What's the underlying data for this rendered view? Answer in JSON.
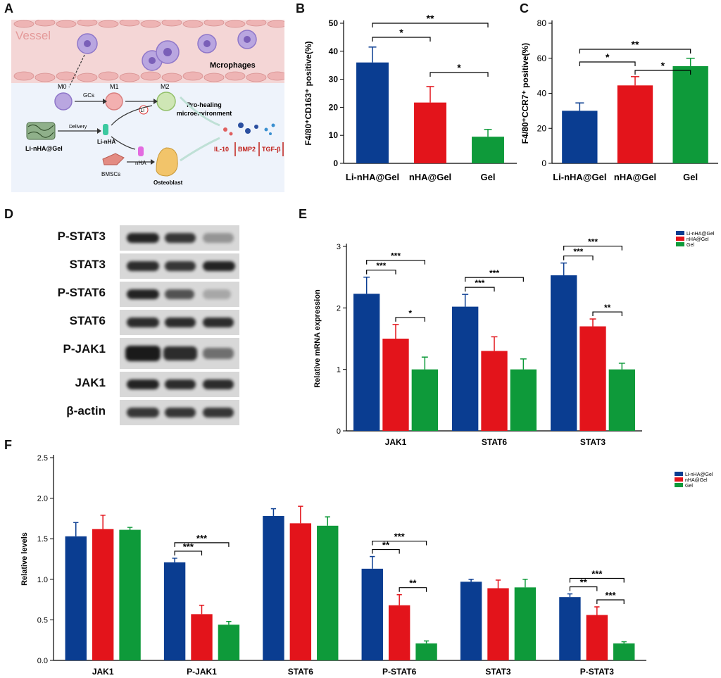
{
  "panel_letters": [
    "A",
    "B",
    "C",
    "D",
    "E",
    "F"
  ],
  "schematic": {
    "vessel_label": "Vessel",
    "macrophage_label": "Mcrophages",
    "m0": "M0",
    "m1": "M1",
    "m2": "M2",
    "gcs": "GCs",
    "li_ion": "Li",
    "delivery": "Delivery",
    "li_nha_gel": "Li-nHA@Gel",
    "li_nha": "Li-nHA",
    "nha": "nHA",
    "bmscs": "BMSCs",
    "osteoblast": "Osteoblast",
    "pro_healing": "Pro-healing\nmicroenvironment",
    "cytokines": [
      "IL-10",
      "BMP2",
      "TGF-β"
    ],
    "colors": {
      "vessel": "#f4d6d6",
      "cell": "#b9a6e0",
      "osteoblast": "#f2c46a",
      "m1": "#f3b0b0",
      "m2": "#cfe6b5",
      "tissue": "#eef3fb"
    }
  },
  "western_blot": {
    "labels": [
      "P-STAT3",
      "STAT3",
      "P-STAT6",
      "STAT6",
      "P-JAK1",
      "JAK1",
      "β-actin"
    ]
  },
  "colors": {
    "li_nha_gel": "#0a3d91",
    "nha_gel": "#e3141b",
    "gel": "#0e9a3a"
  },
  "chart_data": [
    {
      "id": "B",
      "type": "bar",
      "categories": [
        "Li-nHA@Gel",
        "nHA@Gel",
        "Gel"
      ],
      "values": [
        36,
        21.7,
        9.5
      ],
      "errors": [
        5.5,
        5.7,
        2.6
      ],
      "ylabel": "F4/80⁺CD163⁺ positive(%)",
      "ylim": [
        0,
        50
      ],
      "yticks": [
        0,
        10,
        20,
        30,
        40,
        50
      ],
      "significance": [
        {
          "from": 0,
          "to": 1,
          "label": "*"
        },
        {
          "from": 0,
          "to": 2,
          "label": "**"
        },
        {
          "from": 1,
          "to": 2,
          "label": "*"
        }
      ]
    },
    {
      "id": "C",
      "type": "bar",
      "categories": [
        "Li-nHA@Gel",
        "nHA@Gel",
        "Gel"
      ],
      "values": [
        30,
        44.5,
        55.5
      ],
      "errors": [
        4.5,
        5,
        4.5
      ],
      "ylabel": "F4/80⁺CCR7⁺ positive(%)",
      "ylim": [
        0,
        80
      ],
      "yticks": [
        0,
        20,
        40,
        60,
        80
      ],
      "significance": [
        {
          "from": 0,
          "to": 1,
          "label": "*"
        },
        {
          "from": 0,
          "to": 2,
          "label": "**"
        },
        {
          "from": 1,
          "to": 2,
          "label": "*"
        }
      ]
    },
    {
      "id": "E",
      "type": "bar",
      "categories": [
        "JAK1",
        "STAT6",
        "STAT3"
      ],
      "series": [
        {
          "name": "Li-nHA@Gel",
          "values": [
            2.23,
            2.02,
            2.53
          ],
          "errors": [
            0.27,
            0.2,
            0.2
          ]
        },
        {
          "name": "nHA@Gel",
          "values": [
            1.5,
            1.3,
            1.7
          ],
          "errors": [
            0.23,
            0.23,
            0.12
          ]
        },
        {
          "name": "Gel",
          "values": [
            1.0,
            1.0,
            1.0
          ],
          "errors": [
            0.2,
            0.17,
            0.1
          ]
        }
      ],
      "ylabel": "Relative mRNA expression",
      "ylim": [
        0,
        3
      ],
      "yticks": [
        0,
        1,
        2,
        3
      ],
      "legend": "top-right",
      "significance": [
        {
          "group": 0,
          "from": 0,
          "to": 1,
          "label": "***"
        },
        {
          "group": 0,
          "from": 0,
          "to": 2,
          "label": "***"
        },
        {
          "group": 0,
          "from": 1,
          "to": 2,
          "label": "*"
        },
        {
          "group": 1,
          "from": 0,
          "to": 1,
          "label": "***"
        },
        {
          "group": 1,
          "from": 0,
          "to": 2,
          "label": "***"
        },
        {
          "group": 2,
          "from": 0,
          "to": 1,
          "label": "***"
        },
        {
          "group": 2,
          "from": 0,
          "to": 2,
          "label": "***"
        },
        {
          "group": 2,
          "from": 1,
          "to": 2,
          "label": "**"
        }
      ]
    },
    {
      "id": "F",
      "type": "bar",
      "categories": [
        "JAK1",
        "P-JAK1",
        "STAT6",
        "P-STAT6",
        "STAT3",
        "P-STAT3"
      ],
      "series": [
        {
          "name": "Li-nHA@Gel",
          "values": [
            1.53,
            1.21,
            1.78,
            1.13,
            0.97,
            0.78
          ],
          "errors": [
            0.17,
            0.05,
            0.09,
            0.15,
            0.03,
            0.04
          ]
        },
        {
          "name": "nHA@Gel",
          "values": [
            1.62,
            0.57,
            1.69,
            0.68,
            0.89,
            0.56
          ],
          "errors": [
            0.17,
            0.11,
            0.21,
            0.13,
            0.1,
            0.1
          ]
        },
        {
          "name": "Gel",
          "values": [
            1.61,
            0.44,
            1.66,
            0.21,
            0.9,
            0.21
          ],
          "errors": [
            0.03,
            0.04,
            0.11,
            0.03,
            0.1,
            0.02
          ]
        }
      ],
      "ylabel": "Relative levels",
      "ylim": [
        0,
        2.5
      ],
      "yticks": [
        "0.0",
        "0.5",
        "1.0",
        "1.5",
        "2.0",
        "2.5"
      ],
      "legend": "top-right",
      "significance": [
        {
          "group": 1,
          "from": 0,
          "to": 1,
          "label": "***"
        },
        {
          "group": 1,
          "from": 0,
          "to": 2,
          "label": "***"
        },
        {
          "group": 3,
          "from": 0,
          "to": 1,
          "label": "**"
        },
        {
          "group": 3,
          "from": 0,
          "to": 2,
          "label": "***"
        },
        {
          "group": 3,
          "from": 1,
          "to": 2,
          "label": "**"
        },
        {
          "group": 5,
          "from": 0,
          "to": 1,
          "label": "**"
        },
        {
          "group": 5,
          "from": 0,
          "to": 2,
          "label": "***"
        },
        {
          "group": 5,
          "from": 1,
          "to": 2,
          "label": "***"
        }
      ]
    }
  ]
}
